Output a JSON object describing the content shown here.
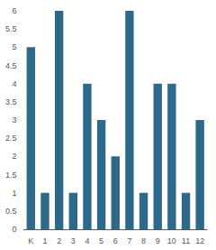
{
  "chart_data": {
    "type": "bar",
    "categories": [
      "K",
      "1",
      "2",
      "3",
      "4",
      "5",
      "6",
      "7",
      "8",
      "9",
      "10",
      "11",
      "12"
    ],
    "values": [
      5,
      1,
      6,
      1,
      4,
      3,
      2,
      6,
      1,
      4,
      4,
      1,
      3
    ],
    "color": "#2d6a8a",
    "ylim": [
      0,
      6
    ],
    "yticks": [
      0,
      0.5,
      1,
      1.5,
      2,
      2.5,
      3,
      3.5,
      4,
      4.5,
      5,
      5.5,
      6
    ],
    "grid": false
  }
}
